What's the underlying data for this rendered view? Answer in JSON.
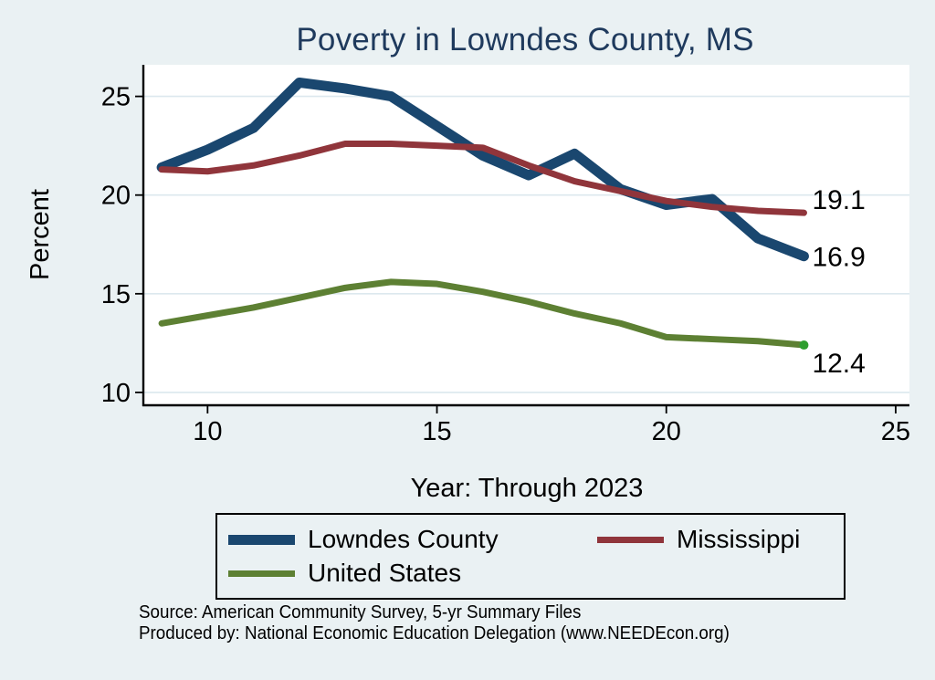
{
  "colors": {
    "background": "#eaf1f3",
    "plot_background": "#ffffff",
    "grid": "#dce8ee",
    "axis": "#000000",
    "title": "#1f3a5d"
  },
  "chart_data": {
    "type": "line",
    "title": "Poverty in Lowndes County, MS",
    "xlabel": "Year: Through 2023",
    "ylabel": "Percent",
    "x": [
      9,
      10,
      11,
      12,
      13,
      14,
      15,
      16,
      17,
      18,
      19,
      20,
      21,
      22,
      23
    ],
    "series": [
      {
        "name": "Lowndes County",
        "color": "#1a476f",
        "width": 11,
        "values": [
          21.4,
          22.3,
          23.4,
          25.7,
          25.4,
          25.0,
          23.5,
          22.0,
          21.0,
          22.1,
          20.3,
          19.5,
          19.8,
          17.8,
          16.9
        ],
        "end_label": "16.9",
        "end_label_dy": 0
      },
      {
        "name": "Mississippi",
        "color": "#90353b",
        "width": 7,
        "values": [
          21.3,
          21.2,
          21.5,
          22.0,
          22.6,
          22.6,
          22.5,
          22.4,
          21.5,
          20.7,
          20.2,
          19.7,
          19.4,
          19.2,
          19.1
        ],
        "end_label": "19.1",
        "end_label_dy": -15
      },
      {
        "name": "United States",
        "color": "#5d8033",
        "width": 7,
        "values": [
          13.5,
          13.9,
          14.3,
          14.8,
          15.3,
          15.6,
          15.5,
          15.1,
          14.6,
          14.0,
          13.5,
          12.8,
          12.7,
          12.6,
          12.4
        ],
        "end_label": "12.4",
        "end_label_dy": 19,
        "end_marker_color": "#2f9e2f"
      }
    ],
    "x_ticks": [
      10,
      15,
      20,
      25
    ],
    "y_ticks": [
      10,
      15,
      20,
      25
    ],
    "xlim": [
      8.6,
      25.3
    ],
    "ylim": [
      9.35,
      26.6
    ],
    "grid": "horizontal",
    "legend_position": "bottom"
  },
  "footnotes": [
    "Source: American Community Survey, 5-yr Summary Files",
    "Produced by: National Economic Education Delegation (www.NEEDEcon.org)"
  ]
}
